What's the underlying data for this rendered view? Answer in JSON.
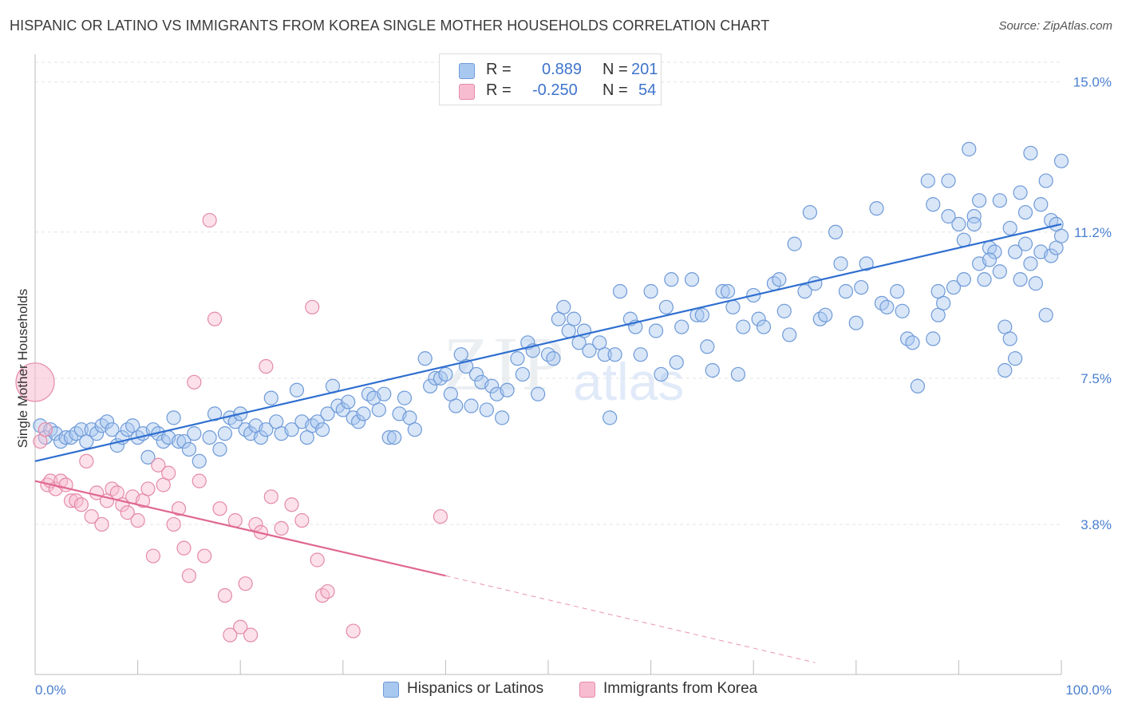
{
  "title": "HISPANIC OR LATINO VS IMMIGRANTS FROM KOREA SINGLE MOTHER HOUSEHOLDS CORRELATION CHART",
  "source": "Source: ZipAtlas.com",
  "watermark": {
    "zip": "ZIP",
    "atlas": "atlas"
  },
  "legend": {
    "r_label": "R =",
    "n_label": "N =",
    "rows": [
      {
        "r": "0.889",
        "n": "201",
        "color": "#a9c8f0",
        "border": "#6f9ad8"
      },
      {
        "r": "-0.250",
        "n": "54",
        "color": "#f8bcd0",
        "border": "#e48aa8"
      }
    ]
  },
  "bottom_legend": [
    {
      "label": "Hispanics or Latinos",
      "color": "#a9c8f0",
      "border": "#6f9ad8"
    },
    {
      "label": "Immigrants from Korea",
      "color": "#f8bcd0",
      "border": "#e48aa8"
    }
  ],
  "chart_data": {
    "type": "scatter",
    "ylabel": "Single Mother Households",
    "xlim": [
      0,
      100
    ],
    "ylim": [
      0,
      15.5
    ],
    "x_tick_labels": [
      "0.0%",
      "100.0%"
    ],
    "y_ticks": [
      3.8,
      7.5,
      11.2,
      15.0
    ],
    "y_tick_labels": [
      "3.8%",
      "7.5%",
      "11.2%",
      "15.0%"
    ],
    "grid": true,
    "series": [
      {
        "name": "Hispanics or Latinos",
        "color": "#a9c8f0",
        "stroke": "#6f9ad8",
        "trend_color": "#2f6fd0",
        "trend": {
          "x": [
            0,
            100
          ],
          "y": [
            5.4,
            11.4
          ]
        },
        "points": [
          [
            0.5,
            6.3
          ],
          [
            1,
            6.0
          ],
          [
            1.5,
            6.2
          ],
          [
            2,
            6.1
          ],
          [
            2.5,
            5.9
          ],
          [
            3,
            6.0
          ],
          [
            3.5,
            6.0
          ],
          [
            4,
            6.1
          ],
          [
            4.5,
            6.2
          ],
          [
            5,
            5.9
          ],
          [
            5.5,
            6.2
          ],
          [
            6,
            6.1
          ],
          [
            6.5,
            6.3
          ],
          [
            7,
            6.4
          ],
          [
            7.5,
            6.2
          ],
          [
            8,
            5.8
          ],
          [
            8.5,
            6.0
          ],
          [
            9,
            6.2
          ],
          [
            9.5,
            6.3
          ],
          [
            10,
            6.0
          ],
          [
            10.5,
            6.1
          ],
          [
            11,
            5.5
          ],
          [
            11.5,
            6.2
          ],
          [
            12,
            6.1
          ],
          [
            12.5,
            5.9
          ],
          [
            13,
            6.0
          ],
          [
            13.5,
            6.5
          ],
          [
            14,
            5.9
          ],
          [
            14.5,
            5.9
          ],
          [
            15,
            5.7
          ],
          [
            15.5,
            6.1
          ],
          [
            16,
            5.4
          ],
          [
            17,
            6.0
          ],
          [
            17.5,
            6.6
          ],
          [
            18,
            5.7
          ],
          [
            18.5,
            6.1
          ],
          [
            19,
            6.5
          ],
          [
            19.5,
            6.4
          ],
          [
            20,
            6.6
          ],
          [
            20.5,
            6.2
          ],
          [
            21,
            6.1
          ],
          [
            21.5,
            6.3
          ],
          [
            22,
            6.0
          ],
          [
            22.5,
            6.2
          ],
          [
            23,
            7.0
          ],
          [
            23.5,
            6.4
          ],
          [
            24,
            6.1
          ],
          [
            25,
            6.2
          ],
          [
            25.5,
            7.2
          ],
          [
            26,
            6.4
          ],
          [
            26.5,
            6.0
          ],
          [
            27,
            6.3
          ],
          [
            27.5,
            6.4
          ],
          [
            28,
            6.2
          ],
          [
            28.5,
            6.6
          ],
          [
            29,
            7.3
          ],
          [
            29.5,
            6.8
          ],
          [
            30,
            6.7
          ],
          [
            30.5,
            6.9
          ],
          [
            31,
            6.5
          ],
          [
            31.5,
            6.4
          ],
          [
            32,
            6.6
          ],
          [
            32.5,
            7.1
          ],
          [
            33,
            7.0
          ],
          [
            33.5,
            6.7
          ],
          [
            34,
            7.1
          ],
          [
            34.5,
            6.0
          ],
          [
            35,
            6.0
          ],
          [
            35.5,
            6.6
          ],
          [
            36,
            7.0
          ],
          [
            36.5,
            6.5
          ],
          [
            37,
            6.2
          ],
          [
            38,
            8.0
          ],
          [
            38.5,
            7.3
          ],
          [
            39,
            7.5
          ],
          [
            39.5,
            7.5
          ],
          [
            40,
            7.6
          ],
          [
            40.5,
            7.1
          ],
          [
            41,
            6.8
          ],
          [
            41.5,
            8.1
          ],
          [
            42,
            7.8
          ],
          [
            42.5,
            6.8
          ],
          [
            43,
            7.6
          ],
          [
            43.5,
            7.4
          ],
          [
            44,
            6.7
          ],
          [
            44.5,
            7.3
          ],
          [
            45,
            7.1
          ],
          [
            45.5,
            6.5
          ],
          [
            46,
            7.2
          ],
          [
            47,
            8.0
          ],
          [
            47.5,
            7.6
          ],
          [
            48,
            8.4
          ],
          [
            48.5,
            8.2
          ],
          [
            49,
            7.1
          ],
          [
            50,
            8.1
          ],
          [
            50.5,
            8.0
          ],
          [
            51,
            9.0
          ],
          [
            51.5,
            9.3
          ],
          [
            52,
            8.7
          ],
          [
            52.5,
            9.0
          ],
          [
            53,
            8.4
          ],
          [
            53.5,
            8.7
          ],
          [
            54,
            8.2
          ],
          [
            55,
            8.4
          ],
          [
            55.5,
            8.1
          ],
          [
            56,
            6.5
          ],
          [
            56.5,
            8.1
          ],
          [
            57,
            9.7
          ],
          [
            58,
            9.0
          ],
          [
            58.5,
            8.8
          ],
          [
            59,
            8.1
          ],
          [
            60,
            9.7
          ],
          [
            60.5,
            8.7
          ],
          [
            61,
            7.6
          ],
          [
            61.5,
            9.3
          ],
          [
            62,
            10.0
          ],
          [
            62.5,
            7.9
          ],
          [
            63,
            8.8
          ],
          [
            64,
            10.0
          ],
          [
            64.5,
            9.1
          ],
          [
            65,
            9.1
          ],
          [
            65.5,
            8.3
          ],
          [
            66,
            7.7
          ],
          [
            67,
            9.7
          ],
          [
            67.5,
            9.7
          ],
          [
            68,
            9.3
          ],
          [
            68.5,
            7.6
          ],
          [
            69,
            8.8
          ],
          [
            70,
            9.6
          ],
          [
            70.5,
            9.0
          ],
          [
            71,
            8.8
          ],
          [
            72,
            9.9
          ],
          [
            72.5,
            10.0
          ],
          [
            73,
            9.2
          ],
          [
            73.5,
            8.6
          ],
          [
            74,
            10.9
          ],
          [
            75,
            9.7
          ],
          [
            75.5,
            11.7
          ],
          [
            76,
            9.9
          ],
          [
            76.5,
            9.0
          ],
          [
            77,
            9.1
          ],
          [
            78,
            11.2
          ],
          [
            78.5,
            10.4
          ],
          [
            79,
            9.7
          ],
          [
            80,
            8.9
          ],
          [
            80.5,
            9.8
          ],
          [
            81,
            10.4
          ],
          [
            82,
            11.8
          ],
          [
            82.5,
            9.4
          ],
          [
            83,
            9.3
          ],
          [
            84,
            9.7
          ],
          [
            84.5,
            9.2
          ],
          [
            85,
            8.5
          ],
          [
            85.5,
            8.4
          ],
          [
            86,
            7.3
          ],
          [
            87,
            12.5
          ],
          [
            87.5,
            8.5
          ],
          [
            88,
            9.1
          ],
          [
            88.5,
            9.4
          ],
          [
            89,
            12.5
          ],
          [
            89.5,
            9.8
          ],
          [
            90,
            11.4
          ],
          [
            90.5,
            11.0
          ],
          [
            91,
            13.3
          ],
          [
            91.5,
            11.6
          ],
          [
            92,
            10.4
          ],
          [
            92.5,
            10.0
          ],
          [
            93,
            10.8
          ],
          [
            93.5,
            10.7
          ],
          [
            94,
            10.2
          ],
          [
            94.5,
            8.8
          ],
          [
            95,
            11.3
          ],
          [
            95.5,
            10.7
          ],
          [
            96,
            10.0
          ],
          [
            96.5,
            10.9
          ],
          [
            97,
            13.2
          ],
          [
            97.5,
            9.9
          ],
          [
            98,
            10.7
          ],
          [
            98.5,
            9.1
          ],
          [
            99,
            10.6
          ],
          [
            99.5,
            10.8
          ],
          [
            100,
            13.0
          ],
          [
            95,
            8.5
          ],
          [
            96,
            12.2
          ],
          [
            96.5,
            11.7
          ],
          [
            97,
            10.4
          ],
          [
            98,
            11.9
          ],
          [
            98.5,
            12.5
          ],
          [
            99,
            11.5
          ],
          [
            99.5,
            11.4
          ],
          [
            100,
            11.1
          ],
          [
            95.5,
            8.0
          ],
          [
            94,
            12.0
          ],
          [
            94.5,
            7.7
          ],
          [
            93,
            10.5
          ],
          [
            92,
            12.0
          ],
          [
            91.5,
            11.4
          ],
          [
            90.5,
            10.0
          ],
          [
            89,
            11.6
          ],
          [
            88,
            9.7
          ],
          [
            87.5,
            11.9
          ]
        ]
      },
      {
        "name": "Immigrants from Korea",
        "color": "#f8bcd0",
        "stroke": "#e48aa8",
        "trend_color": "#e06890",
        "trend": {
          "x": [
            0,
            40
          ],
          "y": [
            4.9,
            2.5
          ]
        },
        "trend_dashed": {
          "x": [
            40,
            76
          ],
          "y": [
            2.5,
            0.3
          ]
        },
        "points": [
          [
            0,
            7.4
          ],
          [
            0.5,
            5.9
          ],
          [
            1,
            6.2
          ],
          [
            1.2,
            4.8
          ],
          [
            1.5,
            4.9
          ],
          [
            2,
            4.7
          ],
          [
            2.5,
            4.9
          ],
          [
            3,
            4.8
          ],
          [
            3.5,
            4.4
          ],
          [
            4,
            4.4
          ],
          [
            4.5,
            4.3
          ],
          [
            5,
            5.4
          ],
          [
            5.5,
            4.0
          ],
          [
            6,
            4.6
          ],
          [
            6.5,
            3.8
          ],
          [
            7,
            4.4
          ],
          [
            7.5,
            4.7
          ],
          [
            8,
            4.6
          ],
          [
            8.5,
            4.3
          ],
          [
            9,
            4.1
          ],
          [
            9.5,
            4.5
          ],
          [
            10,
            3.9
          ],
          [
            10.5,
            4.4
          ],
          [
            11,
            4.7
          ],
          [
            11.5,
            3.0
          ],
          [
            12,
            5.3
          ],
          [
            12.5,
            4.8
          ],
          [
            13,
            5.1
          ],
          [
            13.5,
            3.8
          ],
          [
            14,
            4.2
          ],
          [
            14.5,
            3.2
          ],
          [
            15,
            2.5
          ],
          [
            15.5,
            7.4
          ],
          [
            16,
            4.9
          ],
          [
            16.5,
            3.0
          ],
          [
            17,
            11.5
          ],
          [
            17.5,
            9.0
          ],
          [
            18,
            4.2
          ],
          [
            18.5,
            2.0
          ],
          [
            19,
            1.0
          ],
          [
            19.5,
            3.9
          ],
          [
            20,
            1.2
          ],
          [
            20.5,
            2.3
          ],
          [
            21,
            1.0
          ],
          [
            21.5,
            3.8
          ],
          [
            22,
            3.6
          ],
          [
            22.5,
            7.8
          ],
          [
            23,
            4.5
          ],
          [
            24,
            3.7
          ],
          [
            25,
            4.3
          ],
          [
            26,
            3.9
          ],
          [
            27,
            9.3
          ],
          [
            27.5,
            2.9
          ],
          [
            28,
            2.0
          ],
          [
            28.5,
            2.1
          ],
          [
            31,
            1.1
          ],
          [
            39.5,
            4.0
          ]
        ]
      }
    ]
  }
}
